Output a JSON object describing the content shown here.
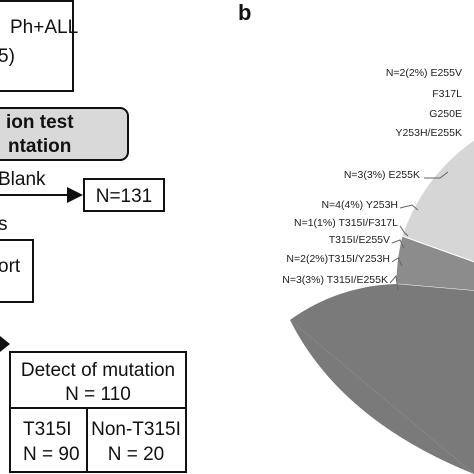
{
  "panel_label": "b",
  "flowchart": {
    "top_box": [
      "Ph+ALL",
      "5)"
    ],
    "test_box": [
      "ion test",
      "ntation"
    ],
    "blank_label": "Blank",
    "blank_box": "N=131",
    "side_text": "s",
    "report_box": "ort",
    "mutation_table": {
      "header": [
        "Detect of mutation",
        "N = 110"
      ],
      "cells": [
        [
          "T315I",
          "N = 90"
        ],
        [
          "Non-T315I",
          "N = 20"
        ]
      ]
    }
  },
  "pie_labels": [
    "N=2(2%) E255V",
    "F317L",
    "G250E",
    "Y253H/E255K",
    "N=3(3%) E255K",
    "N=4(4%) Y253H",
    "N=1(1%) T315I/F317L",
    "T315I/E255V",
    "N=2(2%)T315I/Y253H",
    "N=3(3%) T315I/E255K"
  ]
}
